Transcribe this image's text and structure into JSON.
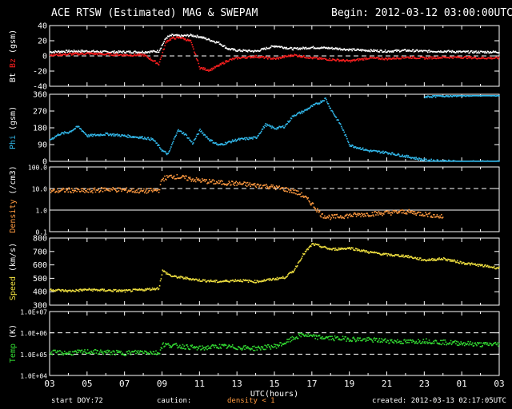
{
  "header": {
    "title": "ACE RTSW (Estimated) MAG & SWEPAM",
    "begin": "Begin: 2012-03-12 03:00:00UTC"
  },
  "footer": {
    "start_doy_label": "start DOY:",
    "start_doy_value": "72",
    "caution_label": "caution:",
    "caution_value": "density < 1",
    "created": "created: 2012-03-13 02:17:05UTC"
  },
  "colors": {
    "frame": "#ffffff",
    "bt": "#ffffff",
    "bz": "#ff2020",
    "phi": "#33bbee",
    "density": "#ff9a40",
    "speed": "#f0e040",
    "temp": "#33dd33",
    "caution": "#ff9a40"
  },
  "chart_data": {
    "type": "scatter",
    "xlabel": "UTC(hours)",
    "x_ticks": [
      "03",
      "05",
      "07",
      "09",
      "11",
      "13",
      "15",
      "17",
      "19",
      "21",
      "23",
      "01",
      "03"
    ],
    "xlim": [
      0,
      24
    ],
    "panels": [
      {
        "id": "mag",
        "ylabel_parts": [
          {
            "text": "Bt",
            "color": "#ffffff"
          },
          {
            "text": "Bz",
            "color": "#ff2020"
          },
          {
            "text": "(gsm)",
            "color": "#ffffff"
          }
        ],
        "scale": "linear",
        "ylim": [
          -40,
          40
        ],
        "ticks": [
          "40",
          "20",
          "0",
          "-20",
          "-40"
        ],
        "tick_values": [
          40,
          20,
          0,
          -20,
          -40
        ],
        "dashed": [
          0
        ],
        "series": [
          {
            "name": "Bt",
            "color": "#ffffff",
            "x": [
              0,
              1,
              2,
              3,
              4,
              5,
              5.8,
              6.2,
              6.5,
              7,
              7.5,
              8,
              8.5,
              9,
              9.5,
              10,
              11,
              12,
              13,
              14,
              15,
              16,
              17,
              18,
              19,
              20,
              21,
              22,
              23,
              24
            ],
            "y": [
              6,
              7,
              7,
              6,
              6,
              6,
              7,
              25,
              28,
              27,
              28,
              26,
              22,
              18,
              10,
              8,
              7,
              14,
              10,
              12,
              11,
              9,
              8,
              7,
              8,
              7,
              7,
              6,
              6,
              6
            ]
          },
          {
            "name": "Bz",
            "color": "#ff2020",
            "x": [
              0,
              1,
              2,
              3,
              4,
              5,
              5.8,
              6.2,
              6.5,
              7,
              7.5,
              8,
              8.5,
              9,
              9.5,
              10,
              11,
              12,
              13,
              14,
              15,
              16,
              17,
              18,
              19,
              20,
              21,
              22,
              23,
              24
            ],
            "y": [
              2,
              3,
              4,
              3,
              2,
              2,
              -10,
              20,
              24,
              25,
              20,
              -15,
              -18,
              -12,
              -5,
              -2,
              0,
              -3,
              2,
              -2,
              -4,
              -6,
              -2,
              -3,
              -1,
              -2,
              -1,
              -1,
              -2,
              -2
            ]
          }
        ]
      },
      {
        "id": "phi",
        "ylabel_parts": [
          {
            "text": "Phi",
            "color": "#33bbee"
          },
          {
            "text": "(gsm)",
            "color": "#ffffff"
          }
        ],
        "scale": "linear",
        "ylim": [
          0,
          360
        ],
        "ticks": [
          "360",
          "270",
          "180",
          "90",
          "0"
        ],
        "tick_values": [
          360,
          270,
          180,
          90,
          0
        ],
        "dashed": [],
        "series": [
          {
            "name": "Phi",
            "color": "#33bbee",
            "x": [
              0,
              0.5,
              1,
              1.5,
              2,
              3,
              4,
              5,
              5.5,
              6,
              6.3,
              6.8,
              7.2,
              7.6,
              8,
              8.5,
              9,
              10,
              11,
              11.5,
              12,
              12.5,
              13,
              13.5,
              14,
              14.4,
              14.7,
              15,
              15.5,
              16,
              17,
              18,
              19,
              20,
              21,
              22,
              23,
              24
            ],
            "y": [
              120,
              150,
              160,
              190,
              140,
              150,
              140,
              130,
              120,
              60,
              40,
              170,
              150,
              100,
              170,
              120,
              90,
              120,
              130,
              200,
              180,
              190,
              250,
              270,
              300,
              320,
              340,
              280,
              200,
              90,
              60,
              50,
              30,
              10,
              5,
              0,
              0,
              0
            ]
          },
          {
            "name": "Phi-wrap",
            "color": "#33bbee",
            "x": [
              20,
              21,
              22,
              23,
              24
            ],
            "y": [
              350,
              355,
              358,
              360,
              360
            ]
          }
        ]
      },
      {
        "id": "density",
        "ylabel_parts": [
          {
            "text": "Density",
            "color": "#ff9a40"
          },
          {
            "text": "(/cm3)",
            "color": "#ffffff"
          }
        ],
        "scale": "log",
        "ylim": [
          0.1,
          100
        ],
        "ticks": [
          "100.0",
          "10.0",
          "1.0",
          "0.1"
        ],
        "tick_values": [
          100,
          10,
          1,
          0.1
        ],
        "dashed": [
          10
        ],
        "solid": [
          1
        ],
        "series": [
          {
            "name": "Density",
            "color": "#ff9a40",
            "x": [
              0,
              1,
              2,
              3,
              4,
              5,
              5.8,
              6,
              6.5,
              7,
              8,
              9,
              10,
              11,
              11.5,
              12,
              12.5,
              13,
              13.5,
              14,
              14.5,
              15,
              16,
              17,
              18,
              19,
              20,
              21
            ],
            "y": [
              8,
              9,
              8,
              10,
              9,
              8,
              9,
              30,
              40,
              35,
              25,
              20,
              18,
              15,
              14,
              12,
              10,
              8,
              5,
              2,
              0.6,
              0.5,
              0.6,
              0.7,
              0.8,
              0.9,
              0.7,
              0.5
            ]
          }
        ]
      },
      {
        "id": "speed",
        "ylabel_parts": [
          {
            "text": "Speed",
            "color": "#f0e040"
          },
          {
            "text": "(km/s)",
            "color": "#ffffff"
          }
        ],
        "scale": "linear",
        "ylim": [
          300,
          800
        ],
        "ticks": [
          "800",
          "700",
          "600",
          "500",
          "400",
          "300"
        ],
        "tick_values": [
          800,
          700,
          600,
          500,
          400,
          300
        ],
        "dashed": [],
        "series": [
          {
            "name": "Speed",
            "color": "#f0e040",
            "x": [
              0,
              1,
              2,
              3,
              4,
              5,
              5.8,
              6,
              6.5,
              7,
              8,
              9,
              10,
              11,
              12,
              12.5,
              13,
              13.5,
              14,
              15,
              16,
              17,
              18,
              19,
              20,
              21,
              22,
              23,
              24
            ],
            "y": [
              420,
              410,
              420,
              415,
              410,
              420,
              430,
              560,
              520,
              510,
              490,
              480,
              490,
              480,
              500,
              510,
              560,
              680,
              760,
              720,
              730,
              700,
              680,
              670,
              640,
              650,
              620,
              600,
              580
            ]
          }
        ]
      },
      {
        "id": "temp",
        "ylabel_parts": [
          {
            "text": "Temp",
            "color": "#33dd33"
          },
          {
            "text": "(K)",
            "color": "#ffffff"
          }
        ],
        "scale": "log",
        "ylim": [
          10000,
          10000000
        ],
        "ticks": [
          "1.0E+07",
          "1.0E+06",
          "1.0E+05",
          "1.0E+04"
        ],
        "tick_values": [
          10000000,
          1000000,
          100000,
          10000
        ],
        "dashed": [
          1000000,
          100000
        ],
        "series": [
          {
            "name": "Temp",
            "color": "#33dd33",
            "x": [
              0,
              1,
              2,
              3,
              4,
              5,
              5.8,
              6,
              7,
              8,
              9,
              10,
              11,
              12,
              12.5,
              13,
              13.5,
              14,
              15,
              16,
              17,
              18,
              19,
              20,
              21,
              22,
              23,
              24
            ],
            "y": [
              130000,
              120000,
              140000,
              130000,
              120000,
              140000,
              120000,
              300000,
              250000,
              200000,
              250000,
              220000,
              200000,
              250000,
              350000,
              600000,
              900000,
              700000,
              600000,
              550000,
              500000,
              450000,
              400000,
              450000,
              380000,
              350000,
              300000,
              320000
            ]
          }
        ]
      }
    ]
  }
}
